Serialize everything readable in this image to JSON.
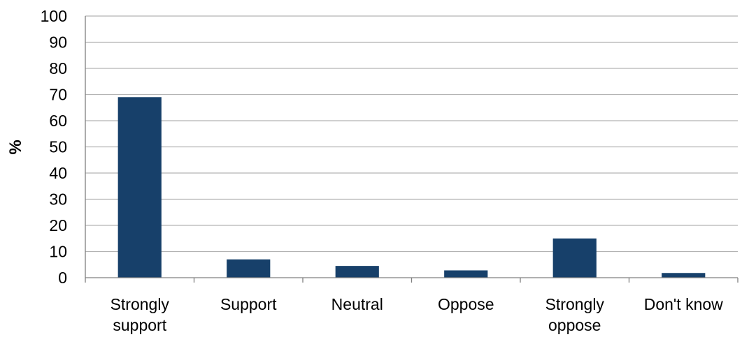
{
  "chart_data": {
    "type": "bar",
    "categories": [
      [
        "Strongly",
        "support"
      ],
      [
        "Support"
      ],
      [
        "Neutral"
      ],
      [
        "Oppose"
      ],
      [
        "Strongly",
        "oppose"
      ],
      [
        "Don't know"
      ]
    ],
    "values": [
      69,
      7,
      4.5,
      2.8,
      15,
      1.8
    ],
    "title": "",
    "xlabel": "",
    "ylabel": "%",
    "ylim": [
      0,
      100
    ],
    "yticks": [
      0,
      10,
      20,
      30,
      40,
      50,
      60,
      70,
      80,
      90,
      100
    ],
    "grid": true,
    "bar_color": "#17406a"
  }
}
